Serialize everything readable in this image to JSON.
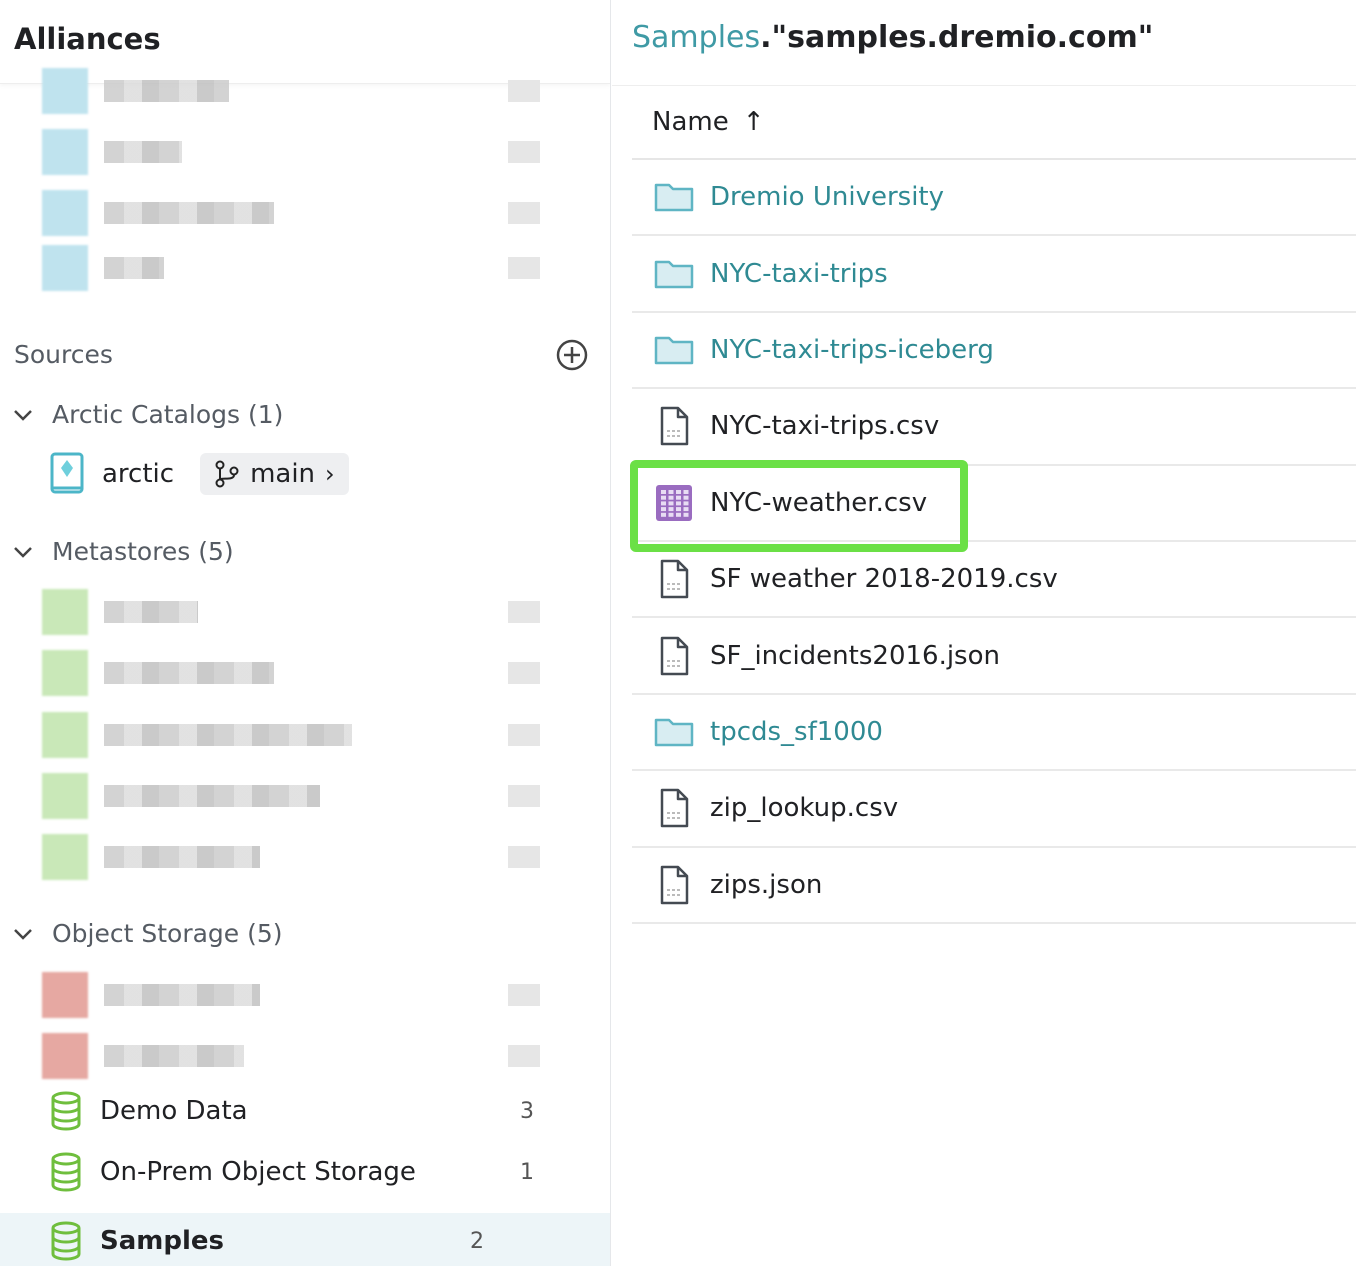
{
  "left": {
    "title": "Alliances",
    "sources_label": "Sources",
    "groups": {
      "arctic": "Arctic Catalogs (1)",
      "metastores": "Metastores (5)",
      "object_storage": "Object Storage (5)"
    },
    "arctic_item": {
      "name": "arctic",
      "branch": "main"
    },
    "object_storage_items": [
      {
        "name": "Demo Data",
        "count": "3"
      },
      {
        "name": "On-Prem Object Storage",
        "count": "1"
      },
      {
        "name": "Samples",
        "count": "2",
        "selected": true
      }
    ],
    "colors": {
      "source_icon": "#6fbe3d",
      "arctic_icon": "#4cb6c8",
      "selected_bg": "#edf5f8"
    }
  },
  "right": {
    "breadcrumb": {
      "root": "Samples",
      "sep": ".",
      "current": "\"samples.dremio.com\""
    },
    "column": {
      "name": "Name",
      "sort": "↑"
    },
    "rows": [
      {
        "name": "Dremio University",
        "type": "folder"
      },
      {
        "name": "NYC-taxi-trips",
        "type": "folder"
      },
      {
        "name": "NYC-taxi-trips-iceberg",
        "type": "folder"
      },
      {
        "name": "NYC-taxi-trips.csv",
        "type": "file"
      },
      {
        "name": "NYC-weather.csv",
        "type": "dataset",
        "highlighted": true
      },
      {
        "name": "SF weather 2018-2019.csv",
        "type": "file"
      },
      {
        "name": "SF_incidents2016.json",
        "type": "file"
      },
      {
        "name": "tpcds_sf1000",
        "type": "folder"
      },
      {
        "name": "zip_lookup.csv",
        "type": "file"
      },
      {
        "name": "zips.json",
        "type": "file"
      }
    ],
    "colors": {
      "folder_text": "#2f8a93",
      "dataset_icon": "#9a6cc0",
      "highlight": "#6be046"
    }
  }
}
